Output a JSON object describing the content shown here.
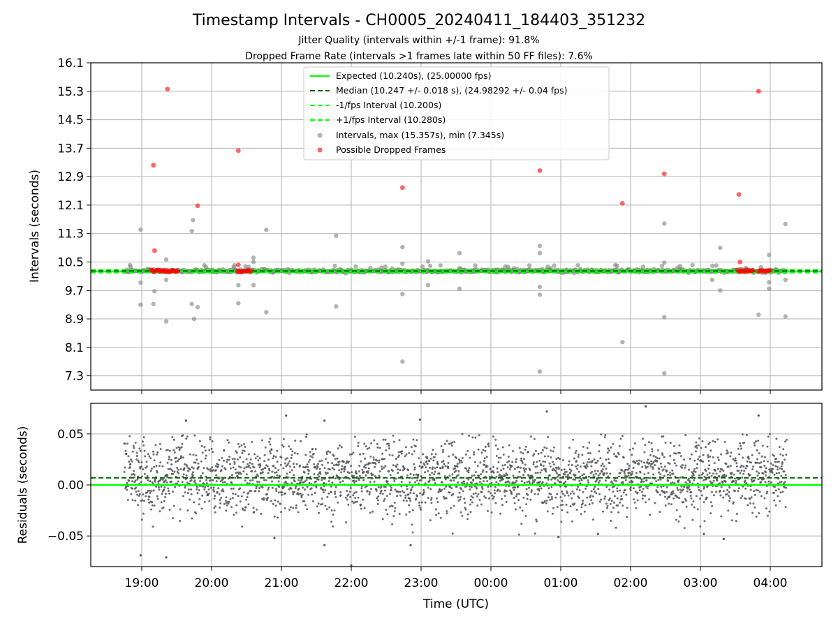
{
  "figure": {
    "title": "Timestamp Intervals - CH0005_20240411_184403_351232",
    "subtitle_1": "Jitter Quality (intervals within +/-1 frame): 91.8%",
    "subtitle_2": "Dropped Frame Rate (intervals >1 frames late within 50 FF files): 7.6%"
  },
  "colors": {
    "expected": "#00ff00",
    "median": "#006400",
    "interval_points": "#808080",
    "dropped_points": "#ff0000",
    "grid": "#b0b0b0",
    "residual_points": "#555555"
  },
  "chart_data": [
    {
      "type": "scatter",
      "xlabel": "Time (UTC)",
      "ylabel": "Intervals (seconds)",
      "grid": true,
      "legend_position": "top-center",
      "x_ticks": [
        "19:00",
        "20:00",
        "21:00",
        "22:00",
        "23:00",
        "00:00",
        "01:00",
        "02:00",
        "03:00",
        "04:00"
      ],
      "y_ticks": [
        "7.3",
        "8.1",
        "8.9",
        "9.7",
        "10.5",
        "11.3",
        "12.1",
        "12.9",
        "13.7",
        "14.5",
        "15.3",
        "16.1"
      ],
      "ylim": [
        6.9,
        16.1
      ],
      "xlim_hours_utc": [
        "18:16",
        "04:45"
      ],
      "legend": [
        {
          "label": "Expected (10.240s), (25.00000 fps)",
          "style": "solid",
          "color": "#00ff00"
        },
        {
          "label": "Median (10.247 +/- 0.018 s), (24.98292 +/- 0.04 fps)",
          "style": "dashed",
          "color": "#006400"
        },
        {
          "label": "-1/fps Interval (10.200s)",
          "style": "dashed",
          "color": "#00ff00"
        },
        {
          "label": "+1/fps Interval (10.280s)",
          "style": "dashed",
          "color": "#00ff00"
        },
        {
          "label": "Intervals, max (15.357s), min (7.345s)",
          "style": "marker",
          "color": "#808080"
        },
        {
          "label": "Possible Dropped Frames",
          "style": "marker",
          "color": "#ff0000"
        }
      ],
      "reference_lines": {
        "expected": 10.24,
        "median": 10.247,
        "minus_one_frame": 10.2,
        "plus_one_frame": 10.28
      },
      "baseline_span": [
        "18:45",
        "04:14"
      ],
      "dropped_frames": [
        {
          "time": "19:22",
          "y": 15.36
        },
        {
          "time": "19:10",
          "y": 13.22
        },
        {
          "time": "19:48",
          "y": 12.08
        },
        {
          "time": "20:23",
          "y": 13.63
        },
        {
          "time": "22:44",
          "y": 12.59
        },
        {
          "time": "00:42",
          "y": 13.07
        },
        {
          "time": "01:53",
          "y": 12.15
        },
        {
          "time": "02:29",
          "y": 12.98
        },
        {
          "time": "03:33",
          "y": 12.4
        },
        {
          "time": "03:50",
          "y": 15.3
        },
        {
          "time": "19:11",
          "y": 10.82
        },
        {
          "time": "20:23",
          "y": 10.42
        },
        {
          "time": "03:34",
          "y": 10.5
        }
      ],
      "dropped_clusters": [
        {
          "start": "19:08",
          "end": "19:31",
          "y": 10.25
        },
        {
          "start": "20:22",
          "end": "20:34",
          "y": 10.25
        },
        {
          "start": "03:32",
          "end": "03:45",
          "y": 10.25
        },
        {
          "start": "03:50",
          "end": "04:00",
          "y": 10.25
        }
      ],
      "outliers": [
        {
          "time": "18:59",
          "y": 11.41
        },
        {
          "time": "18:59",
          "y": 9.92
        },
        {
          "time": "18:59",
          "y": 9.3
        },
        {
          "time": "19:10",
          "y": 9.32
        },
        {
          "time": "19:11",
          "y": 9.68
        },
        {
          "time": "19:21",
          "y": 8.83
        },
        {
          "time": "19:21",
          "y": 10.57
        },
        {
          "time": "19:21",
          "y": 10.0
        },
        {
          "time": "19:44",
          "y": 11.68
        },
        {
          "time": "19:43",
          "y": 11.37
        },
        {
          "time": "19:43",
          "y": 9.32
        },
        {
          "time": "19:45",
          "y": 8.9
        },
        {
          "time": "19:48",
          "y": 9.23
        },
        {
          "time": "20:23",
          "y": 9.85
        },
        {
          "time": "20:23",
          "y": 9.34
        },
        {
          "time": "20:36",
          "y": 10.62
        },
        {
          "time": "20:36",
          "y": 10.5
        },
        {
          "time": "20:36",
          "y": 9.85
        },
        {
          "time": "20:47",
          "y": 11.4
        },
        {
          "time": "20:47",
          "y": 9.09
        },
        {
          "time": "21:47",
          "y": 11.24
        },
        {
          "time": "21:47",
          "y": 9.25
        },
        {
          "time": "22:44",
          "y": 10.92
        },
        {
          "time": "22:44",
          "y": 10.45
        },
        {
          "time": "22:44",
          "y": 9.6
        },
        {
          "time": "22:44",
          "y": 7.7
        },
        {
          "time": "23:06",
          "y": 10.52
        },
        {
          "time": "23:06",
          "y": 9.85
        },
        {
          "time": "23:33",
          "y": 10.75
        },
        {
          "time": "23:33",
          "y": 9.75
        },
        {
          "time": "00:42",
          "y": 10.95
        },
        {
          "time": "00:42",
          "y": 10.75
        },
        {
          "time": "00:42",
          "y": 9.8
        },
        {
          "time": "00:42",
          "y": 9.58
        },
        {
          "time": "00:42",
          "y": 7.42
        },
        {
          "time": "01:53",
          "y": 8.25
        },
        {
          "time": "02:29",
          "y": 11.58
        },
        {
          "time": "02:29",
          "y": 8.95
        },
        {
          "time": "02:29",
          "y": 10.48
        },
        {
          "time": "02:29",
          "y": 7.37
        },
        {
          "time": "03:17",
          "y": 10.9
        },
        {
          "time": "03:17",
          "y": 9.7
        },
        {
          "time": "03:10",
          "y": 10.0
        },
        {
          "time": "03:50",
          "y": 9.02
        },
        {
          "time": "03:59",
          "y": 10.7
        },
        {
          "time": "03:59",
          "y": 9.93
        },
        {
          "time": "03:59",
          "y": 9.75
        },
        {
          "time": "04:13",
          "y": 11.57
        },
        {
          "time": "04:13",
          "y": 8.97
        },
        {
          "time": "04:13",
          "y": 10.0
        }
      ]
    },
    {
      "type": "scatter",
      "xlabel": "Time (UTC)",
      "ylabel": "Residuals (seconds)",
      "grid": true,
      "x_ticks": [
        "19:00",
        "20:00",
        "21:00",
        "22:00",
        "23:00",
        "00:00",
        "01:00",
        "02:00",
        "03:00",
        "04:00"
      ],
      "y_ticks": [
        "0.05",
        "0.00",
        "−0.05"
      ],
      "ylim": [
        -0.08,
        0.08
      ],
      "reference_lines": {
        "expected": 0.0,
        "median": 0.007
      },
      "residual_span": [
        "18:45",
        "04:14"
      ],
      "residual_spread": {
        "center": 0.007,
        "typical_abs_max": 0.05,
        "extreme_min": -0.078,
        "extreme_max": 0.078
      },
      "extreme_points": [
        {
          "time": "18:59",
          "y": -0.069
        },
        {
          "time": "19:21",
          "y": -0.071
        },
        {
          "time": "22:00",
          "y": -0.079
        },
        {
          "time": "22:51",
          "y": -0.059
        },
        {
          "time": "21:37",
          "y": -0.059
        },
        {
          "time": "20:54",
          "y": -0.052
        },
        {
          "time": "00:58",
          "y": -0.051
        },
        {
          "time": "01:32",
          "y": -0.048
        },
        {
          "time": "03:03",
          "y": -0.048
        },
        {
          "time": "03:20",
          "y": -0.053
        },
        {
          "time": "02:13",
          "y": 0.077
        },
        {
          "time": "03:50",
          "y": 0.068
        },
        {
          "time": "00:48",
          "y": 0.072
        },
        {
          "time": "21:04",
          "y": 0.068
        },
        {
          "time": "22:59",
          "y": 0.064
        },
        {
          "time": "19:38",
          "y": 0.063
        },
        {
          "time": "21:37",
          "y": 0.063
        }
      ]
    }
  ]
}
